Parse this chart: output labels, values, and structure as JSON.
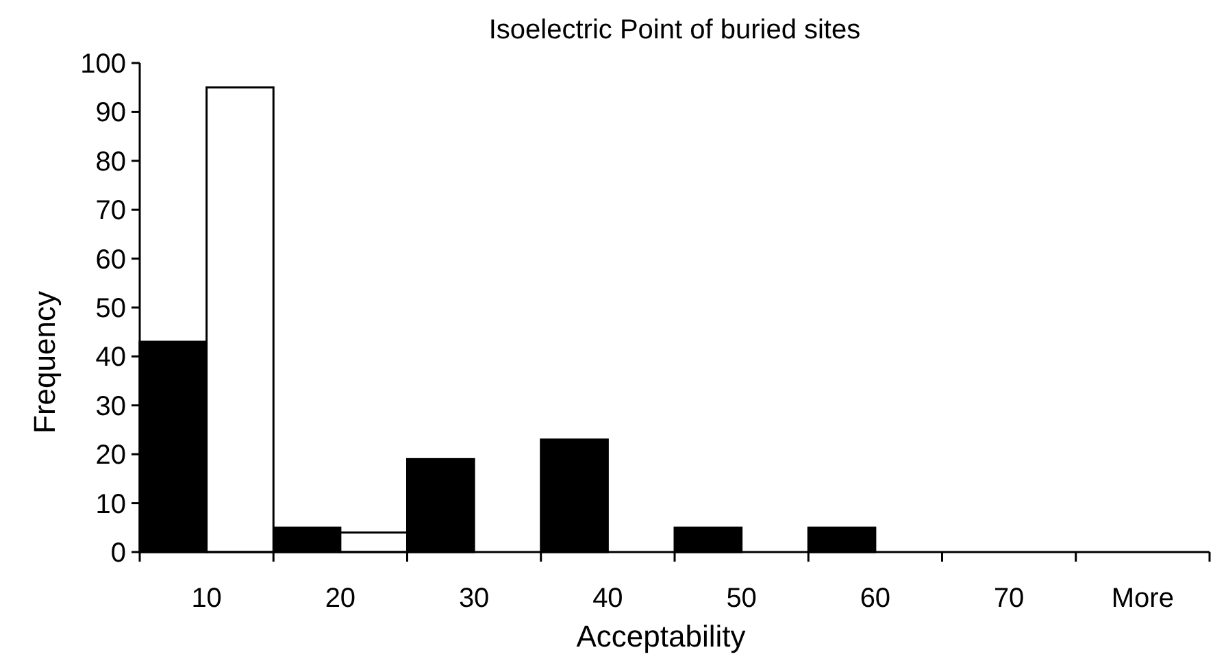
{
  "chart_data": {
    "type": "bar",
    "title": "Isoelectric Point of buried sites",
    "xlabel": "Acceptability",
    "ylabel": "Frequency",
    "categories": [
      "10",
      "20",
      "30",
      "40",
      "50",
      "60",
      "70",
      "More"
    ],
    "series": [
      {
        "color": "#000000",
        "values": [
          43,
          5,
          19,
          23,
          5,
          5,
          0,
          0
        ]
      },
      {
        "color": "#ffffff",
        "values": [
          95,
          4,
          0,
          0,
          0,
          0,
          0,
          0
        ]
      }
    ],
    "ylim": [
      0,
      100
    ],
    "yticks": [
      0,
      10,
      20,
      30,
      40,
      50,
      60,
      70,
      80,
      90,
      100
    ],
    "grid": false
  }
}
